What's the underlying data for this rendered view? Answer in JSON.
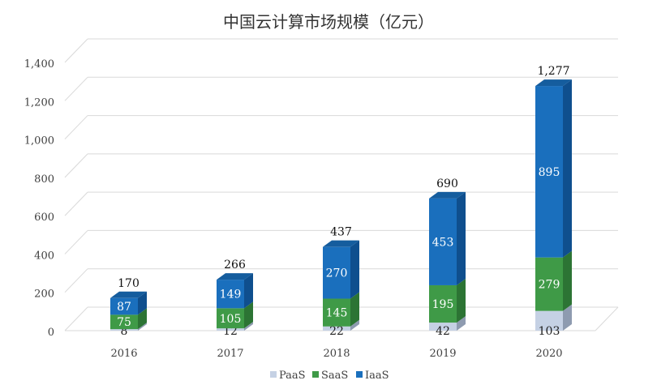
{
  "chart_data": {
    "type": "bar",
    "stacked": true,
    "style": "3d-stacked-column",
    "title": "中国云计算市场规模（亿元）",
    "xlabel": "",
    "ylabel": "",
    "categories": [
      "2016",
      "2017",
      "2018",
      "2019",
      "2020"
    ],
    "series": [
      {
        "name": "PaaS",
        "values": [
          8,
          12,
          22,
          42,
          103
        ],
        "color": "#c5d1e4",
        "side": "#8e9bb0",
        "top": "#dde5f0",
        "label_color": "#222222"
      },
      {
        "name": "SaaS",
        "values": [
          75,
          105,
          145,
          195,
          279
        ],
        "color": "#3f9a47",
        "side": "#2c7434",
        "top": "#5cb864",
        "label_color": "#ffffff"
      },
      {
        "name": "IaaS",
        "values": [
          87,
          149,
          270,
          453,
          895
        ],
        "color": "#1a6fbd",
        "side": "#0f4f8e",
        "top": "#155d9e",
        "label_color": "#ffffff"
      }
    ],
    "totals": [
      "170",
      "266",
      "437",
      "690",
      "1,277"
    ],
    "ylim": [
      0,
      1400
    ],
    "yticks": [
      0,
      200,
      400,
      600,
      800,
      1000,
      1200,
      1400
    ],
    "ytick_labels": [
      "0",
      "200",
      "400",
      "600",
      "800",
      "1,000",
      "1,200",
      "1,400"
    ],
    "grid": true,
    "legend_position": "bottom"
  }
}
